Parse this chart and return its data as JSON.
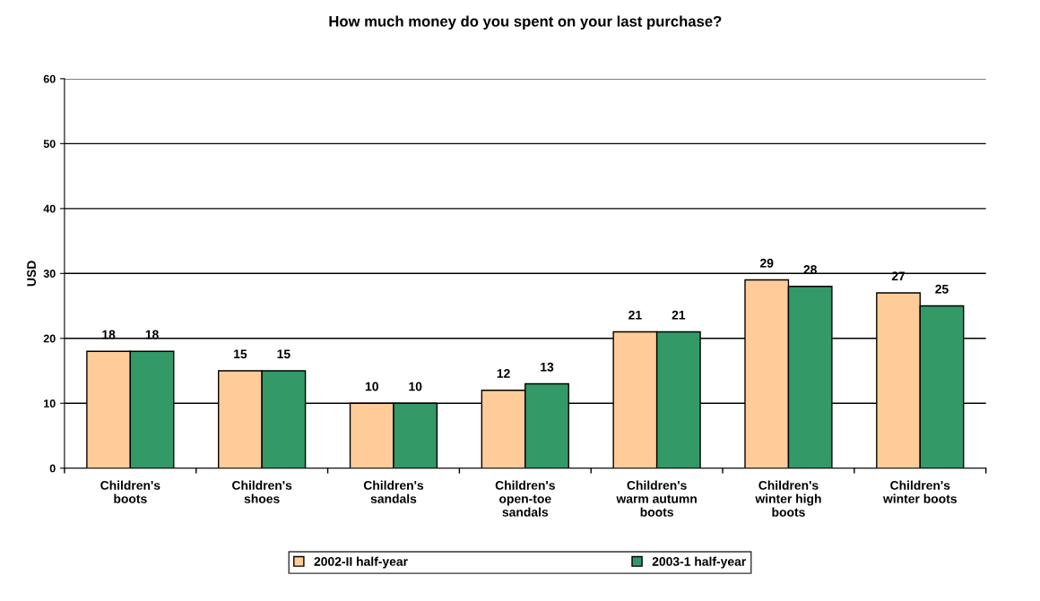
{
  "chart_data": {
    "type": "bar",
    "title": "How much money do you spent on your last purchase?",
    "ylabel": "USD",
    "categories": [
      "Children's\nboots",
      "Children's\nshoes",
      "Children's\nsandals",
      "Children's\nopen-toe\nsandals",
      "Children's\nwarm autumn\nboots",
      "Children's\nwinter high\nboots",
      "Children's\nwinter boots"
    ],
    "series": [
      {
        "name": "2002-II half-year",
        "color": "#ffcc99",
        "values": [
          18,
          15,
          10,
          12,
          21,
          29,
          27
        ]
      },
      {
        "name": "2003-1 half-year",
        "color": "#339966",
        "values": [
          18,
          15,
          10,
          13,
          21,
          28,
          25
        ]
      }
    ],
    "ylim": [
      0,
      60
    ],
    "yticks": [
      0,
      10,
      20,
      30,
      40,
      50,
      60
    ],
    "grid": "y",
    "legend": "bottom",
    "data_labels": true
  }
}
